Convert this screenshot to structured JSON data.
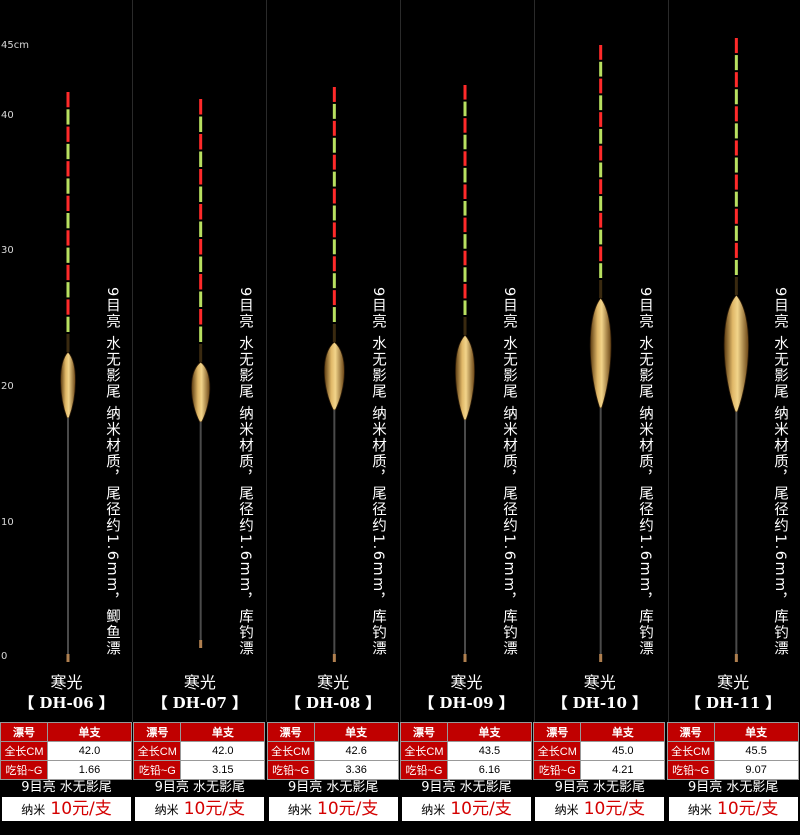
{
  "ruler": {
    "labels": [
      "45cm",
      "40",
      "30",
      "20",
      "10",
      "0"
    ]
  },
  "colors": {
    "tip_red": "#ff2a2a",
    "tip_green": "#b8e060",
    "body_gold": "#c89a40",
    "header_red": "#c00000",
    "price_red": "#d40000"
  },
  "spec_header": {
    "col1": "漂号",
    "col2": "单支"
  },
  "row_labels": {
    "length": "全长CM",
    "lead": "吃铅~G"
  },
  "products": [
    {
      "brand": "寒光",
      "model": "【 DH-06 】",
      "length": "42.0",
      "lead": "1.66",
      "feature": "9目亮 水无影尾",
      "price_prefix": "纳米",
      "price": "10元/支",
      "description": "9目亮 水无影尾 纳米材质，尾径约1.6mm，鲫鱼漂"
    },
    {
      "brand": "寒光",
      "model": "【 DH-07 】",
      "length": "42.0",
      "lead": "3.15",
      "feature": "9目亮 水无影尾",
      "price_prefix": "纳米",
      "price": "10元/支",
      "description": "9目亮 水无影尾 纳米材质，尾径约1.6mm，库钓漂"
    },
    {
      "brand": "寒光",
      "model": "【 DH-08 】",
      "length": "42.6",
      "lead": "3.36",
      "feature": "9目亮 水无影尾",
      "price_prefix": "纳米",
      "price": "10元/支",
      "description": "9目亮 水无影尾 纳米材质，尾径约1.6mm，库钓漂"
    },
    {
      "brand": "寒光",
      "model": "【 DH-09 】",
      "length": "43.5",
      "lead": "6.16",
      "feature": "9目亮 水无影尾",
      "price_prefix": "纳米",
      "price": "10元/支",
      "description": "9目亮 水无影尾 纳米材质，尾径约1.6mm，库钓漂"
    },
    {
      "brand": "寒光",
      "model": "【 DH-10 】",
      "length": "45.0",
      "lead": "4.21",
      "feature": "9目亮 水无影尾",
      "price_prefix": "纳米",
      "price": "10元/支",
      "description": "9目亮 水无影尾 纳米材质，尾径约1.6mm，库钓漂"
    },
    {
      "brand": "寒光",
      "model": "【 DH-11 】",
      "length": "45.5",
      "lead": "9.07",
      "feature": "9目亮 水无影尾",
      "price_prefix": "纳米",
      "price": "10元/支",
      "description": "9目亮 水无影尾 纳米材质，尾径约1.6mm，库钓漂"
    }
  ]
}
